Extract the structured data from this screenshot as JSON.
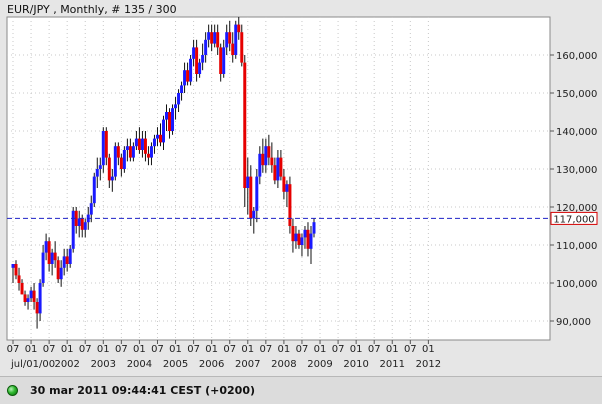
{
  "chart_data": {
    "type": "candlestick",
    "title": "EUR/JPY , Monthly, # 135 / 300",
    "ylim": [
      85000,
      170000
    ],
    "yticks": [
      90000,
      100000,
      110000,
      120000,
      130000,
      140000,
      150000,
      160000
    ],
    "ytick_labels": [
      "90,000",
      "100,000",
      "110,000",
      "120,000",
      "130,000",
      "140,000",
      "150,000",
      "160,000"
    ],
    "xticks": [
      {
        "t": 0,
        "label": "07"
      },
      {
        "t": 6,
        "label": "01"
      },
      {
        "t": 12,
        "label": "07"
      },
      {
        "t": 18,
        "label": "01"
      },
      {
        "t": 24,
        "label": "07"
      },
      {
        "t": 30,
        "label": "01"
      },
      {
        "t": 36,
        "label": "07"
      },
      {
        "t": 42,
        "label": "01"
      },
      {
        "t": 48,
        "label": "07"
      },
      {
        "t": 54,
        "label": "01"
      },
      {
        "t": 60,
        "label": "07"
      },
      {
        "t": 66,
        "label": "01"
      },
      {
        "t": 72,
        "label": "07"
      },
      {
        "t": 78,
        "label": "01"
      },
      {
        "t": 84,
        "label": "07"
      },
      {
        "t": 90,
        "label": "01"
      },
      {
        "t": 96,
        "label": "07"
      },
      {
        "t": 102,
        "label": "01"
      },
      {
        "t": 108,
        "label": "07"
      },
      {
        "t": 114,
        "label": "01"
      },
      {
        "t": 120,
        "label": "07"
      },
      {
        "t": 126,
        "label": "01"
      },
      {
        "t": 132,
        "label": "07"
      },
      {
        "t": 138,
        "label": "01"
      }
    ],
    "xlabels_year": [
      {
        "t": 0,
        "label": "jul/01/00"
      },
      {
        "t": 18,
        "label": "2002"
      },
      {
        "t": 30,
        "label": "2003"
      },
      {
        "t": 42,
        "label": "2004"
      },
      {
        "t": 54,
        "label": "2005"
      },
      {
        "t": 66,
        "label": "2006"
      },
      {
        "t": 78,
        "label": "2007"
      },
      {
        "t": 90,
        "label": "2008"
      },
      {
        "t": 102,
        "label": "2009"
      },
      {
        "t": 114,
        "label": "2010"
      },
      {
        "t": 126,
        "label": "2011"
      },
      {
        "t": 138,
        "label": "2012"
      }
    ],
    "current_price": 117000,
    "current_price_label": "117,000",
    "colors": {
      "up": "#1a1aff",
      "down": "#e60000",
      "wick": "#111111",
      "price_line": "#1e22c8",
      "label_border": "#d40000",
      "grid": "#c8c8c8"
    },
    "candles": [
      [
        104,
        105,
        100,
        105
      ],
      [
        105,
        106,
        101,
        102
      ],
      [
        102,
        104,
        98,
        100
      ],
      [
        100,
        101,
        97,
        97
      ],
      [
        97,
        98,
        94,
        95
      ],
      [
        95,
        97,
        93,
        96
      ],
      [
        96,
        99,
        95,
        98
      ],
      [
        98,
        100,
        93,
        95
      ],
      [
        95,
        96,
        88,
        92
      ],
      [
        92,
        101,
        90,
        100
      ],
      [
        100,
        110,
        99,
        108
      ],
      [
        108,
        113,
        106,
        111
      ],
      [
        111,
        112,
        103,
        105
      ],
      [
        105,
        109,
        102,
        108
      ],
      [
        108,
        111,
        104,
        106
      ],
      [
        106,
        107,
        100,
        101
      ],
      [
        101,
        106,
        99,
        104
      ],
      [
        104,
        109,
        102,
        107
      ],
      [
        107,
        109,
        103,
        105
      ],
      [
        105,
        110,
        104,
        109
      ],
      [
        109,
        120,
        108,
        119
      ],
      [
        119,
        120,
        113,
        115
      ],
      [
        115,
        119,
        112,
        117
      ],
      [
        117,
        118,
        112,
        114
      ],
      [
        114,
        117,
        112,
        116
      ],
      [
        116,
        120,
        114,
        118
      ],
      [
        118,
        123,
        116,
        121
      ],
      [
        121,
        129,
        120,
        128
      ],
      [
        128,
        133,
        125,
        130
      ],
      [
        130,
        133,
        127,
        131
      ],
      [
        131,
        141,
        129,
        140
      ],
      [
        140,
        141,
        131,
        133
      ],
      [
        133,
        134,
        125,
        127
      ],
      [
        127,
        130,
        124,
        128
      ],
      [
        128,
        137,
        127,
        136
      ],
      [
        136,
        137,
        131,
        133
      ],
      [
        133,
        134,
        128,
        130
      ],
      [
        130,
        136,
        129,
        135
      ],
      [
        135,
        138,
        132,
        136
      ],
      [
        136,
        138,
        132,
        133
      ],
      [
        133,
        137,
        132,
        136
      ],
      [
        136,
        140,
        135,
        138
      ],
      [
        138,
        141,
        134,
        135
      ],
      [
        135,
        140,
        133,
        138
      ],
      [
        138,
        140,
        132,
        134
      ],
      [
        134,
        136,
        131,
        133
      ],
      [
        133,
        137,
        131,
        136
      ],
      [
        136,
        139,
        134,
        138
      ],
      [
        138,
        141,
        136,
        139
      ],
      [
        139,
        142,
        136,
        137
      ],
      [
        137,
        144,
        135,
        143
      ],
      [
        143,
        147,
        140,
        145
      ],
      [
        145,
        146,
        138,
        140
      ],
      [
        140,
        147,
        139,
        146
      ],
      [
        146,
        149,
        143,
        147
      ],
      [
        147,
        151,
        145,
        150
      ],
      [
        150,
        153,
        148,
        152
      ],
      [
        152,
        158,
        150,
        156
      ],
      [
        156,
        158,
        152,
        153
      ],
      [
        153,
        160,
        152,
        159
      ],
      [
        159,
        164,
        157,
        162
      ],
      [
        162,
        164,
        153,
        155
      ],
      [
        155,
        159,
        154,
        158
      ],
      [
        158,
        163,
        156,
        160
      ],
      [
        160,
        166,
        158,
        164
      ],
      [
        164,
        168,
        162,
        166
      ],
      [
        166,
        168,
        161,
        163
      ],
      [
        163,
        168,
        162,
        166
      ],
      [
        166,
        168,
        160,
        162
      ],
      [
        162,
        163,
        153,
        155
      ],
      [
        155,
        164,
        154,
        162
      ],
      [
        162,
        168,
        160,
        166
      ],
      [
        166,
        169,
        161,
        163
      ],
      [
        163,
        166,
        158,
        160
      ],
      [
        160,
        169,
        159,
        168
      ],
      [
        168,
        170,
        164,
        166
      ],
      [
        166,
        168,
        157,
        158
      ],
      [
        158,
        160,
        120,
        125
      ],
      [
        125,
        133,
        118,
        128
      ],
      [
        128,
        131,
        115,
        117
      ],
      [
        117,
        120,
        113,
        119
      ],
      [
        119,
        130,
        116,
        128
      ],
      [
        128,
        136,
        126,
        134
      ],
      [
        134,
        138,
        129,
        131
      ],
      [
        131,
        138,
        129,
        136
      ],
      [
        136,
        139,
        131,
        133
      ],
      [
        133,
        137,
        129,
        131
      ],
      [
        131,
        133,
        126,
        127
      ],
      [
        127,
        135,
        125,
        133
      ],
      [
        133,
        135,
        127,
        128
      ],
      [
        128,
        130,
        122,
        124
      ],
      [
        124,
        127,
        120,
        126
      ],
      [
        126,
        128,
        113,
        115
      ],
      [
        115,
        117,
        108,
        111
      ],
      [
        111,
        115,
        109,
        113
      ],
      [
        113,
        114,
        109,
        110
      ],
      [
        110,
        113,
        107,
        112
      ],
      [
        112,
        115,
        109,
        114
      ],
      [
        114,
        116,
        107,
        109
      ],
      [
        109,
        115,
        105,
        113
      ],
      [
        113,
        117,
        112,
        116
      ]
    ]
  },
  "status": {
    "datetime": "30 mar 2011 09:44:41  CEST (+0200)"
  }
}
